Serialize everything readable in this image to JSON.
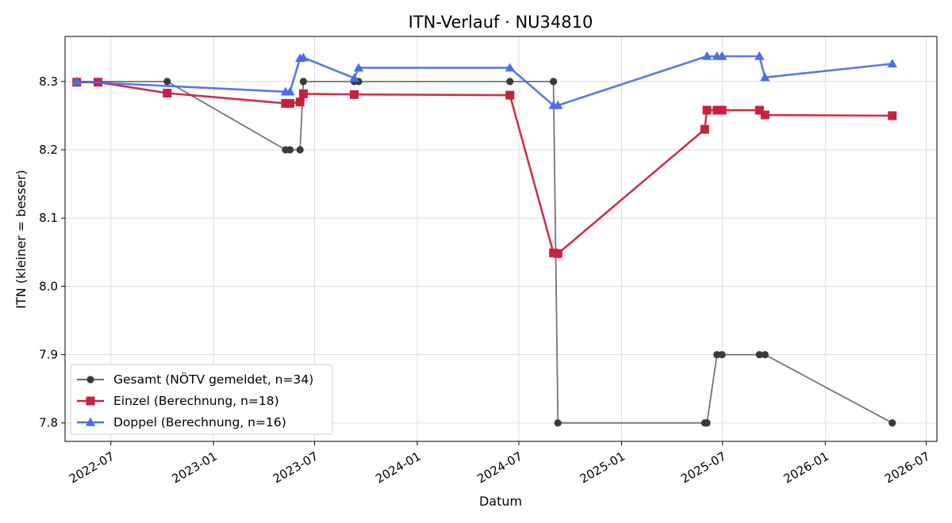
{
  "chart_data": {
    "type": "line",
    "title": "ITN-Verlauf · NU34810",
    "xlabel": "Datum",
    "ylabel": "ITN  (kleiner = besser)",
    "x_type": "date",
    "xlim": [
      "2022-04-10",
      "2026-07-20"
    ],
    "ylim": [
      7.773,
      8.366
    ],
    "grid": true,
    "legend_position": "lower-left",
    "x_ticks": [
      {
        "value": "2022-07-01",
        "label": "2022-07"
      },
      {
        "value": "2023-01-01",
        "label": "2023-01"
      },
      {
        "value": "2023-07-01",
        "label": "2023-07"
      },
      {
        "value": "2024-01-01",
        "label": "2024-01"
      },
      {
        "value": "2024-07-01",
        "label": "2024-07"
      },
      {
        "value": "2025-01-01",
        "label": "2025-01"
      },
      {
        "value": "2025-07-01",
        "label": "2025-07"
      },
      {
        "value": "2026-01-01",
        "label": "2026-01"
      },
      {
        "value": "2026-07-01",
        "label": "2026-07"
      }
    ],
    "y_ticks": [
      {
        "value": 7.8,
        "label": "7.8"
      },
      {
        "value": 7.9,
        "label": "7.9"
      },
      {
        "value": 8.0,
        "label": "8.0"
      },
      {
        "value": 8.1,
        "label": "8.1"
      },
      {
        "value": 8.2,
        "label": "8.2"
      },
      {
        "value": 8.3,
        "label": "8.3"
      }
    ],
    "series": [
      {
        "name": "Gesamt (NÖTV gemeldet, n=34)",
        "color": "#555555",
        "marker": "circle",
        "points": [
          {
            "x": "2022-05-01",
            "y": 8.3
          },
          {
            "x": "2022-06-08",
            "y": 8.3
          },
          {
            "x": "2022-10-10",
            "y": 8.3
          },
          {
            "x": "2023-05-10",
            "y": 8.2
          },
          {
            "x": "2023-05-18",
            "y": 8.2
          },
          {
            "x": "2023-06-05",
            "y": 8.2
          },
          {
            "x": "2023-06-11",
            "y": 8.3
          },
          {
            "x": "2023-09-10",
            "y": 8.3
          },
          {
            "x": "2023-09-18",
            "y": 8.3
          },
          {
            "x": "2024-06-15",
            "y": 8.3
          },
          {
            "x": "2024-09-01",
            "y": 8.3
          },
          {
            "x": "2024-09-09",
            "y": 7.8
          },
          {
            "x": "2025-05-30",
            "y": 7.8
          },
          {
            "x": "2025-06-03",
            "y": 7.8
          },
          {
            "x": "2025-06-21",
            "y": 7.9
          },
          {
            "x": "2025-06-30",
            "y": 7.9
          },
          {
            "x": "2025-09-05",
            "y": 7.9
          },
          {
            "x": "2025-09-15",
            "y": 7.9
          },
          {
            "x": "2026-05-01",
            "y": 7.8
          }
        ]
      },
      {
        "name": "Einzel (Berechnung, n=18)",
        "color": "#c8203e",
        "marker": "square",
        "points": [
          {
            "x": "2022-05-01",
            "y": 8.299
          },
          {
            "x": "2022-06-08",
            "y": 8.299
          },
          {
            "x": "2022-10-10",
            "y": 8.283
          },
          {
            "x": "2023-05-10",
            "y": 8.268
          },
          {
            "x": "2023-05-18",
            "y": 8.268
          },
          {
            "x": "2023-06-05",
            "y": 8.27
          },
          {
            "x": "2023-06-11",
            "y": 8.282
          },
          {
            "x": "2023-09-10",
            "y": 8.281
          },
          {
            "x": "2024-06-15",
            "y": 8.28
          },
          {
            "x": "2024-09-01",
            "y": 8.049
          },
          {
            "x": "2024-09-09",
            "y": 8.048
          },
          {
            "x": "2025-05-30",
            "y": 8.23
          },
          {
            "x": "2025-06-03",
            "y": 8.258
          },
          {
            "x": "2025-06-21",
            "y": 8.258
          },
          {
            "x": "2025-06-30",
            "y": 8.258
          },
          {
            "x": "2025-09-05",
            "y": 8.258
          },
          {
            "x": "2025-09-15",
            "y": 8.251
          },
          {
            "x": "2026-05-01",
            "y": 8.25
          }
        ]
      },
      {
        "name": "Doppel (Berechnung, n=16)",
        "color": "#4a6ee8",
        "marker": "triangle",
        "points": [
          {
            "x": "2022-05-01",
            "y": 8.3
          },
          {
            "x": "2023-05-10",
            "y": 8.285
          },
          {
            "x": "2023-05-18",
            "y": 8.285
          },
          {
            "x": "2023-06-05",
            "y": 8.334
          },
          {
            "x": "2023-06-11",
            "y": 8.335
          },
          {
            "x": "2023-09-10",
            "y": 8.305
          },
          {
            "x": "2023-09-18",
            "y": 8.32
          },
          {
            "x": "2024-06-15",
            "y": 8.32
          },
          {
            "x": "2024-09-01",
            "y": 8.265
          },
          {
            "x": "2024-09-09",
            "y": 8.265
          },
          {
            "x": "2025-06-03",
            "y": 8.337
          },
          {
            "x": "2025-06-21",
            "y": 8.337
          },
          {
            "x": "2025-06-30",
            "y": 8.337
          },
          {
            "x": "2025-09-05",
            "y": 8.337
          },
          {
            "x": "2025-09-15",
            "y": 8.306
          },
          {
            "x": "2026-05-01",
            "y": 8.326
          }
        ]
      }
    ]
  }
}
